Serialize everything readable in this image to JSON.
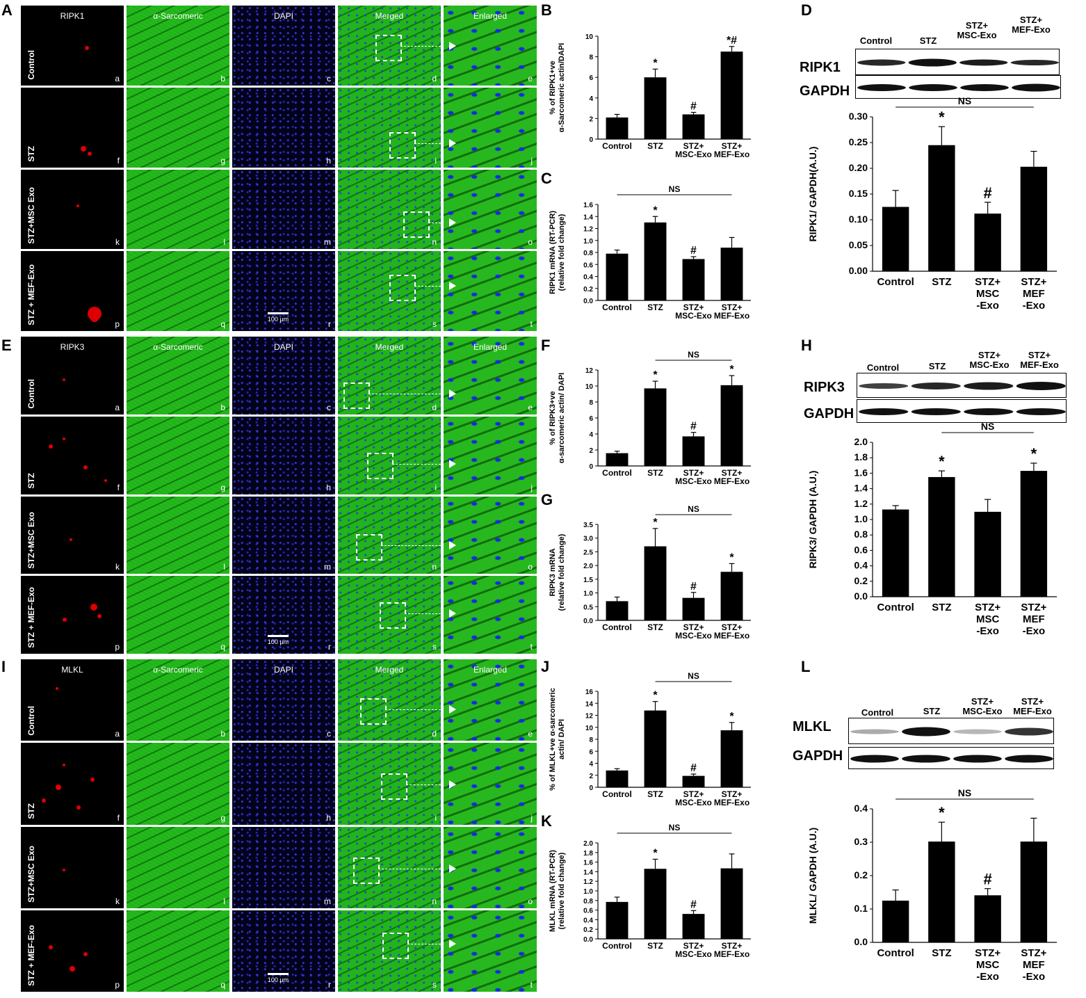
{
  "panel_letters": [
    "A",
    "B",
    "C",
    "D",
    "E",
    "F",
    "G",
    "H",
    "I",
    "J",
    "K",
    "L"
  ],
  "micro": [
    {
      "marker": "RIPK1",
      "col_labels": [
        "RIPK1",
        "α-Sarcomeric",
        "DAPI",
        "Merged",
        "Enlarged"
      ],
      "rows": [
        "Control",
        "STZ",
        "STZ+MSC Exo",
        "STZ + MEF-Exo"
      ],
      "sub_letters": [
        [
          "a",
          "b",
          "c",
          "d",
          "e"
        ],
        [
          "f",
          "g",
          "h",
          "i",
          "j"
        ],
        [
          "k",
          "l",
          "m",
          "n",
          "o"
        ],
        [
          "p",
          "q",
          "r",
          "s",
          "t"
        ]
      ],
      "scale": "100 µm"
    },
    {
      "marker": "RIPK3",
      "col_labels": [
        "RIPK3",
        "α-Sarcomeric",
        "DAPI",
        "Merged",
        "Enlarged"
      ],
      "rows": [
        "Control",
        "STZ",
        "STZ+MSC Exo",
        "STZ + MEF-Exo"
      ],
      "sub_letters": [
        [
          "a",
          "b",
          "c",
          "d",
          "e"
        ],
        [
          "f",
          "g",
          "h",
          "i",
          "j"
        ],
        [
          "k",
          "l",
          "m",
          "n",
          "o"
        ],
        [
          "p",
          "q",
          "r",
          "s",
          "t"
        ]
      ],
      "scale": "100 µm"
    },
    {
      "marker": "MLKL",
      "col_labels": [
        "MLKL",
        "α-Sarcomeric",
        "DAPI",
        "Merged",
        "Enlarged"
      ],
      "rows": [
        "Control",
        "STZ",
        "STZ+MSC Exo",
        "STZ + MEF-Exo"
      ],
      "sub_letters": [
        [
          "a",
          "b",
          "c",
          "d",
          "e"
        ],
        [
          "f",
          "g",
          "h",
          "i",
          "j"
        ],
        [
          "k",
          "l",
          "m",
          "n",
          "o"
        ],
        [
          "p",
          "q",
          "r",
          "s",
          "t"
        ]
      ],
      "scale": "100 µm"
    }
  ],
  "blots": [
    {
      "lanes": [
        "Control",
        "STZ",
        "STZ+\nMSC-Exo",
        "STZ+\nMEF-Exo"
      ],
      "target": "RIPK1",
      "loading": "GAPDH"
    },
    {
      "lanes": [
        "Control",
        "STZ",
        "STZ+\nMSC-Exo",
        "STZ+\nMEF-Exo"
      ],
      "target": "RIPK3",
      "loading": "GAPDH"
    },
    {
      "lanes": [
        "Control",
        "STZ",
        "STZ+\nMSC-Exo",
        "STZ+\nMEF-Exo"
      ],
      "target": "MLKL",
      "loading": "GAPDH"
    }
  ],
  "chart_data": [
    {
      "panel": "B",
      "type": "bar",
      "categories": [
        "Control",
        "STZ",
        "STZ+\nMSC-Exo",
        "STZ+\nMEF-Exo"
      ],
      "values": [
        2.1,
        6.0,
        2.4,
        8.5
      ],
      "errors": [
        0.3,
        0.8,
        0.2,
        0.5
      ],
      "marks": [
        "",
        "*",
        "#",
        "*#"
      ],
      "ylabel": "% of RIPK1+ve\nα-Sarcomeric actin/DAPI",
      "ylim": [
        0,
        10
      ],
      "yticks": [
        0,
        2,
        4,
        6,
        8,
        10
      ],
      "ns": null
    },
    {
      "panel": "C",
      "type": "bar",
      "categories": [
        "Control",
        "STZ",
        "STZ+\nMSC-Exo",
        "STZ+\nMEF-Exo"
      ],
      "values": [
        0.78,
        1.3,
        0.69,
        0.88
      ],
      "errors": [
        0.06,
        0.1,
        0.04,
        0.17
      ],
      "marks": [
        "",
        "*",
        "#",
        ""
      ],
      "ylabel": "RIPK1 mRNA (RT-PCR)\n(relative fold change)",
      "ylim": [
        0,
        1.6
      ],
      "yticks": [
        0,
        0.2,
        0.4,
        0.6,
        0.8,
        1.0,
        1.2,
        1.4,
        1.6
      ],
      "ns": {
        "label": "NS",
        "from": 0,
        "to": 3
      }
    },
    {
      "panel": "D",
      "type": "bar",
      "categories": [
        "Control",
        "STZ",
        "STZ+\nMSC\n-Exo",
        "STZ+\nMEF\n-Exo"
      ],
      "values": [
        0.125,
        0.245,
        0.112,
        0.203
      ],
      "errors": [
        0.032,
        0.036,
        0.022,
        0.03
      ],
      "marks": [
        "",
        "*",
        "#",
        ""
      ],
      "ylabel": "RIPK1/ GAPDH(A.U.)",
      "ylim": [
        0,
        0.3
      ],
      "yticks": [
        0.0,
        0.05,
        0.1,
        0.15,
        0.2,
        0.25,
        0.3
      ],
      "ns": {
        "label": "NS",
        "from": 0,
        "to": 3
      }
    },
    {
      "panel": "F",
      "type": "bar",
      "categories": [
        "Control",
        "STZ",
        "STZ+\nMSC-Exo",
        "STZ+\nMEF-Exo"
      ],
      "values": [
        1.6,
        9.7,
        3.7,
        10.1
      ],
      "errors": [
        0.25,
        0.9,
        0.5,
        1.2
      ],
      "marks": [
        "",
        "*",
        "#",
        "*"
      ],
      "ylabel": "% of RIPK3+ve\nα-sarcomeric actin/ DAPI",
      "ylim": [
        0,
        12
      ],
      "yticks": [
        0,
        2,
        4,
        6,
        8,
        10,
        12
      ],
      "ns": {
        "label": "NS",
        "from": 1,
        "to": 3
      }
    },
    {
      "panel": "G",
      "type": "bar",
      "categories": [
        "Control",
        "STZ",
        "STZ+\nMSC-Exo",
        "STZ+\nMEF-Exo"
      ],
      "values": [
        0.7,
        2.7,
        0.82,
        1.77
      ],
      "errors": [
        0.15,
        0.65,
        0.2,
        0.3
      ],
      "marks": [
        "",
        "*",
        "#",
        "*"
      ],
      "ylabel": "RIPK3 mRNA\n(relative fold change)",
      "ylim": [
        0,
        3.5
      ],
      "yticks": [
        0,
        0.5,
        1.0,
        1.5,
        2.0,
        2.5,
        3.0,
        3.5
      ],
      "ns": {
        "label": "NS",
        "from": 1,
        "to": 3
      }
    },
    {
      "panel": "H",
      "type": "bar",
      "categories": [
        "Control",
        "STZ",
        "STZ+\nMSC\n-Exo",
        "STZ+\nMEF\n-Exo"
      ],
      "values": [
        1.13,
        1.55,
        1.1,
        1.63
      ],
      "errors": [
        0.05,
        0.08,
        0.16,
        0.1
      ],
      "marks": [
        "",
        "*",
        "",
        "*"
      ],
      "ylabel": "RIPK3/ GAPDH (A.U.)",
      "ylim": [
        0,
        2.0
      ],
      "yticks": [
        0,
        0.2,
        0.4,
        0.6,
        0.8,
        1.0,
        1.2,
        1.4,
        1.6,
        1.8,
        2.0
      ],
      "ns": {
        "label": "NS",
        "from": 1,
        "to": 3
      }
    },
    {
      "panel": "J",
      "type": "bar",
      "categories": [
        "Control",
        "STZ",
        "STZ+\nMSC-Exo",
        "STZ+\nMEF-Exo"
      ],
      "values": [
        2.8,
        12.8,
        1.9,
        9.5
      ],
      "errors": [
        0.3,
        1.5,
        0.3,
        1.3
      ],
      "marks": [
        "",
        "*",
        "#",
        "*"
      ],
      "ylabel": "% of MLKL+ve α-sarcomeric\nactin/ DAPI",
      "ylim": [
        0,
        16
      ],
      "yticks": [
        0,
        2,
        4,
        6,
        8,
        10,
        12,
        14,
        16
      ],
      "ns": {
        "label": "NS",
        "from": 1,
        "to": 3
      }
    },
    {
      "panel": "K",
      "type": "bar",
      "categories": [
        "Control",
        "STZ",
        "STZ+\nMSC-Exo",
        "STZ+\nMEF-Exo"
      ],
      "values": [
        0.77,
        1.46,
        0.52,
        1.47
      ],
      "errors": [
        0.1,
        0.2,
        0.07,
        0.3
      ],
      "marks": [
        "",
        "*",
        "#",
        ""
      ],
      "ylabel": "MLKL mRNA (RT-PCR)\n(relative fold change)",
      "ylim": [
        0,
        2.0
      ],
      "yticks": [
        0,
        0.2,
        0.4,
        0.6,
        0.8,
        1.0,
        1.2,
        1.4,
        1.6,
        1.8,
        2.0
      ],
      "ns": {
        "label": "NS",
        "from": 0,
        "to": 3
      }
    },
    {
      "panel": "L",
      "type": "bar",
      "categories": [
        "Control",
        "STZ",
        "STZ+\nMSC\n-Exo",
        "STZ+\nMEF\n-Exo"
      ],
      "values": [
        0.125,
        0.302,
        0.141,
        0.302
      ],
      "errors": [
        0.032,
        0.058,
        0.02,
        0.07
      ],
      "marks": [
        "",
        "*",
        "#",
        ""
      ],
      "ylabel": "MLKL/ GAPDH (A.U.)",
      "ylim": [
        0,
        0.4
      ],
      "yticks": [
        0.0,
        0.1,
        0.2,
        0.3,
        0.4
      ],
      "ns": {
        "label": "NS",
        "from": 0,
        "to": 3
      }
    }
  ]
}
